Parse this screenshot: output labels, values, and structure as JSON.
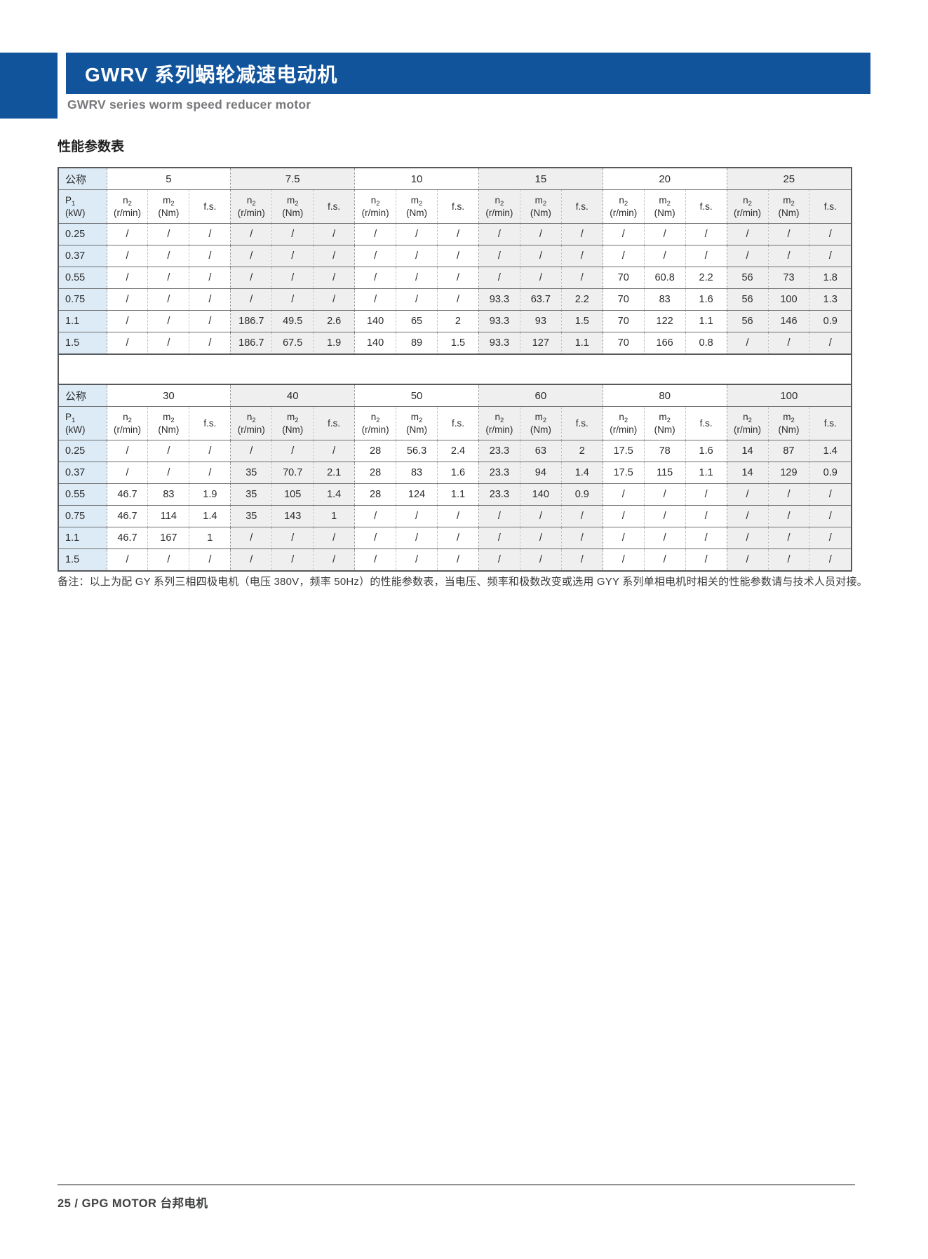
{
  "header": {
    "title_cn": "GWRV 系列蜗轮减速电动机",
    "title_en": "GWRV series worm speed reducer motor"
  },
  "section_heading": "性能参数表",
  "colors": {
    "brand_blue": "#12549b",
    "row_label_bg": "#dcebf6",
    "group_shade": "#efefef"
  },
  "table": {
    "corner_label": "公称",
    "p1": {
      "base": "P",
      "sub": "1",
      "unit": "(kW)"
    },
    "col_headers": {
      "n2": {
        "base": "n",
        "sub": "2",
        "unit": "(r/min)"
      },
      "m2": {
        "base": "m",
        "sub": "2",
        "unit": "(Nm)"
      },
      "fs": {
        "label": "f.s."
      }
    },
    "tables": [
      {
        "ratios": [
          "5",
          "7.5",
          "10",
          "15",
          "20",
          "25"
        ],
        "rows": [
          {
            "p1": "0.25",
            "cells": [
              "/",
              "/",
              "/",
              "/",
              "/",
              "/",
              "/",
              "/",
              "/",
              "/",
              "/",
              "/",
              "/",
              "/",
              "/",
              "/",
              "/",
              "/"
            ]
          },
          {
            "p1": "0.37",
            "cells": [
              "/",
              "/",
              "/",
              "/",
              "/",
              "/",
              "/",
              "/",
              "/",
              "/",
              "/",
              "/",
              "/",
              "/",
              "/",
              "/",
              "/",
              "/"
            ]
          },
          {
            "p1": "0.55",
            "cells": [
              "/",
              "/",
              "/",
              "/",
              "/",
              "/",
              "/",
              "/",
              "/",
              "/",
              "/",
              "/",
              "70",
              "60.8",
              "2.2",
              "56",
              "73",
              "1.8"
            ]
          },
          {
            "p1": "0.75",
            "cells": [
              "/",
              "/",
              "/",
              "/",
              "/",
              "/",
              "/",
              "/",
              "/",
              "93.3",
              "63.7",
              "2.2",
              "70",
              "83",
              "1.6",
              "56",
              "100",
              "1.3"
            ]
          },
          {
            "p1": "1.1",
            "cells": [
              "/",
              "/",
              "/",
              "186.7",
              "49.5",
              "2.6",
              "140",
              "65",
              "2",
              "93.3",
              "93",
              "1.5",
              "70",
              "122",
              "1.1",
              "56",
              "146",
              "0.9"
            ]
          },
          {
            "p1": "1.5",
            "cells": [
              "/",
              "/",
              "/",
              "186.7",
              "67.5",
              "1.9",
              "140",
              "89",
              "1.5",
              "93.3",
              "127",
              "1.1",
              "70",
              "166",
              "0.8",
              "/",
              "/",
              "/"
            ]
          }
        ]
      },
      {
        "ratios": [
          "30",
          "40",
          "50",
          "60",
          "80",
          "100"
        ],
        "rows": [
          {
            "p1": "0.25",
            "cells": [
              "/",
              "/",
              "/",
              "/",
              "/",
              "/",
              "28",
              "56.3",
              "2.4",
              "23.3",
              "63",
              "2",
              "17.5",
              "78",
              "1.6",
              "14",
              "87",
              "1.4"
            ]
          },
          {
            "p1": "0.37",
            "cells": [
              "/",
              "/",
              "/",
              "35",
              "70.7",
              "2.1",
              "28",
              "83",
              "1.6",
              "23.3",
              "94",
              "1.4",
              "17.5",
              "115",
              "1.1",
              "14",
              "129",
              "0.9"
            ]
          },
          {
            "p1": "0.55",
            "cells": [
              "46.7",
              "83",
              "1.9",
              "35",
              "105",
              "1.4",
              "28",
              "124",
              "1.1",
              "23.3",
              "140",
              "0.9",
              "/",
              "/",
              "/",
              "/",
              "/",
              "/"
            ]
          },
          {
            "p1": "0.75",
            "cells": [
              "46.7",
              "114",
              "1.4",
              "35",
              "143",
              "1",
              "/",
              "/",
              "/",
              "/",
              "/",
              "/",
              "/",
              "/",
              "/",
              "/",
              "/",
              "/"
            ]
          },
          {
            "p1": "1.1",
            "cells": [
              "46.7",
              "167",
              "1",
              "/",
              "/",
              "/",
              "/",
              "/",
              "/",
              "/",
              "/",
              "/",
              "/",
              "/",
              "/",
              "/",
              "/",
              "/"
            ]
          },
          {
            "p1": "1.5",
            "cells": [
              "/",
              "/",
              "/",
              "/",
              "/",
              "/",
              "/",
              "/",
              "/",
              "/",
              "/",
              "/",
              "/",
              "/",
              "/",
              "/",
              "/",
              "/"
            ]
          }
        ]
      }
    ]
  },
  "note": "备注：以上为配 GY 系列三相四极电机（电压 380V，频率 50Hz）的性能参数表，当电压、频率和极数改变或选用 GYY 系列单相电机时相关的性能参数请与技术人员对接。",
  "footer": "25  /  GPG MOTOR 台邦电机"
}
